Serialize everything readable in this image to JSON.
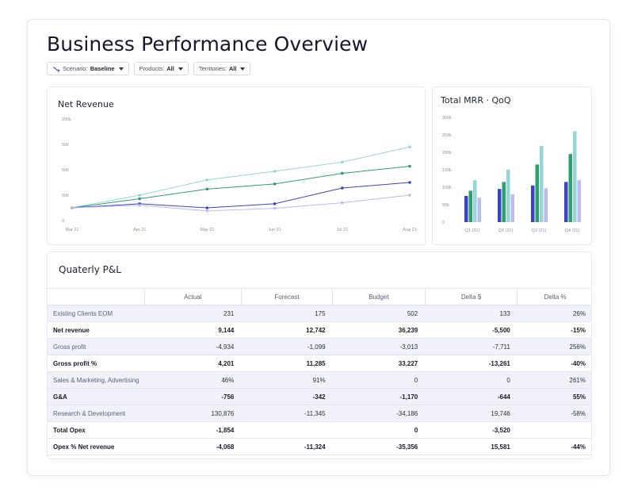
{
  "page": {
    "title": "Business Performance Overview"
  },
  "filters": [
    {
      "label": "Scenario:",
      "value": "Baseline",
      "icon": "scenario-icon"
    },
    {
      "label": "Products:",
      "value": "All"
    },
    {
      "label": "Territories:",
      "value": "All"
    }
  ],
  "colors": {
    "dark_blue": "#3b44c4",
    "green": "#2e9e6e",
    "light_teal": "#93d6d4",
    "lavender": "#b9bcf0"
  },
  "chart_data": [
    {
      "type": "line",
      "title": "Net Revenue",
      "x": [
        "Mar 21",
        "Apr 21",
        "May 21",
        "Jun 21",
        "Jul 21",
        "Aug 21"
      ],
      "y_ticks": [
        "0",
        "50k",
        "50k",
        "50k",
        "200k"
      ],
      "series": [
        {
          "values": [
            25,
            50,
            80,
            97,
            115,
            145
          ]
        },
        {
          "values": [
            25,
            43,
            62,
            72,
            93,
            107
          ]
        },
        {
          "values": [
            25,
            33,
            25,
            33,
            64,
            75
          ]
        },
        {
          "values": [
            25,
            30,
            19,
            24,
            35,
            50
          ]
        }
      ]
    },
    {
      "type": "bar",
      "title": "Total MRR · QoQ",
      "categories": [
        "Q1 (21)",
        "Q2 (21)",
        "Q3 (21)",
        "Q4 (21)"
      ],
      "y_ticks": [
        "0",
        "50k",
        "100k",
        "150k",
        "200k",
        "250k",
        "300k"
      ],
      "ylim": [
        0,
        300
      ],
      "series": [
        {
          "values": [
            75,
            95,
            105,
            115
          ]
        },
        {
          "values": [
            90,
            115,
            165,
            195
          ]
        },
        {
          "values": [
            120,
            150,
            218,
            260
          ]
        },
        {
          "values": [
            70,
            80,
            97,
            120
          ]
        }
      ]
    }
  ],
  "pl": {
    "title": "Quaterly P&L",
    "columns": [
      "",
      "Actual",
      "Forecast",
      "Budget",
      "Delta $",
      "Delta %"
    ],
    "rows": [
      {
        "cells": [
          "Existing Clients EOM",
          "231",
          "175",
          "502",
          "133",
          "26%"
        ],
        "bold": false,
        "shade": true
      },
      {
        "cells": [
          "Net revenue",
          "9,144",
          "12,742",
          "36,239",
          "-5,500",
          "-15%"
        ],
        "bold": true,
        "shade": false
      },
      {
        "cells": [
          "Gross profit",
          "-4,934",
          "-1,099",
          "-3,013",
          "-7,711",
          "256%"
        ],
        "bold": false,
        "shade": true
      },
      {
        "cells": [
          "Gross profit %",
          "4,201",
          "11,285",
          "33,227",
          "-13,261",
          "-40%"
        ],
        "bold": true,
        "shade": false
      },
      {
        "cells": [
          "Sales & Marketing, Advertising",
          "46%",
          "91%",
          "0",
          "0",
          "261%"
        ],
        "bold": false,
        "shade": true
      },
      {
        "cells": [
          "G&A",
          "-756",
          "-342",
          "-1,170",
          "-644",
          "55%"
        ],
        "bold": true,
        "shade": true
      },
      {
        "cells": [
          "Research & Development",
          "130,876",
          "-11,345",
          "-34,186",
          "19,746",
          "-58%"
        ],
        "bold": false,
        "shade": true
      },
      {
        "cells": [
          "Total Opex",
          "-1,854",
          "",
          "0",
          "-3,520",
          ""
        ],
        "bold": true,
        "shade": false
      },
      {
        "cells": [
          "Opex % Net revenue",
          "-4,068",
          "-11,324",
          "-35,356",
          "15,581",
          "-44%"
        ],
        "bold": true,
        "shade": false
      }
    ]
  }
}
